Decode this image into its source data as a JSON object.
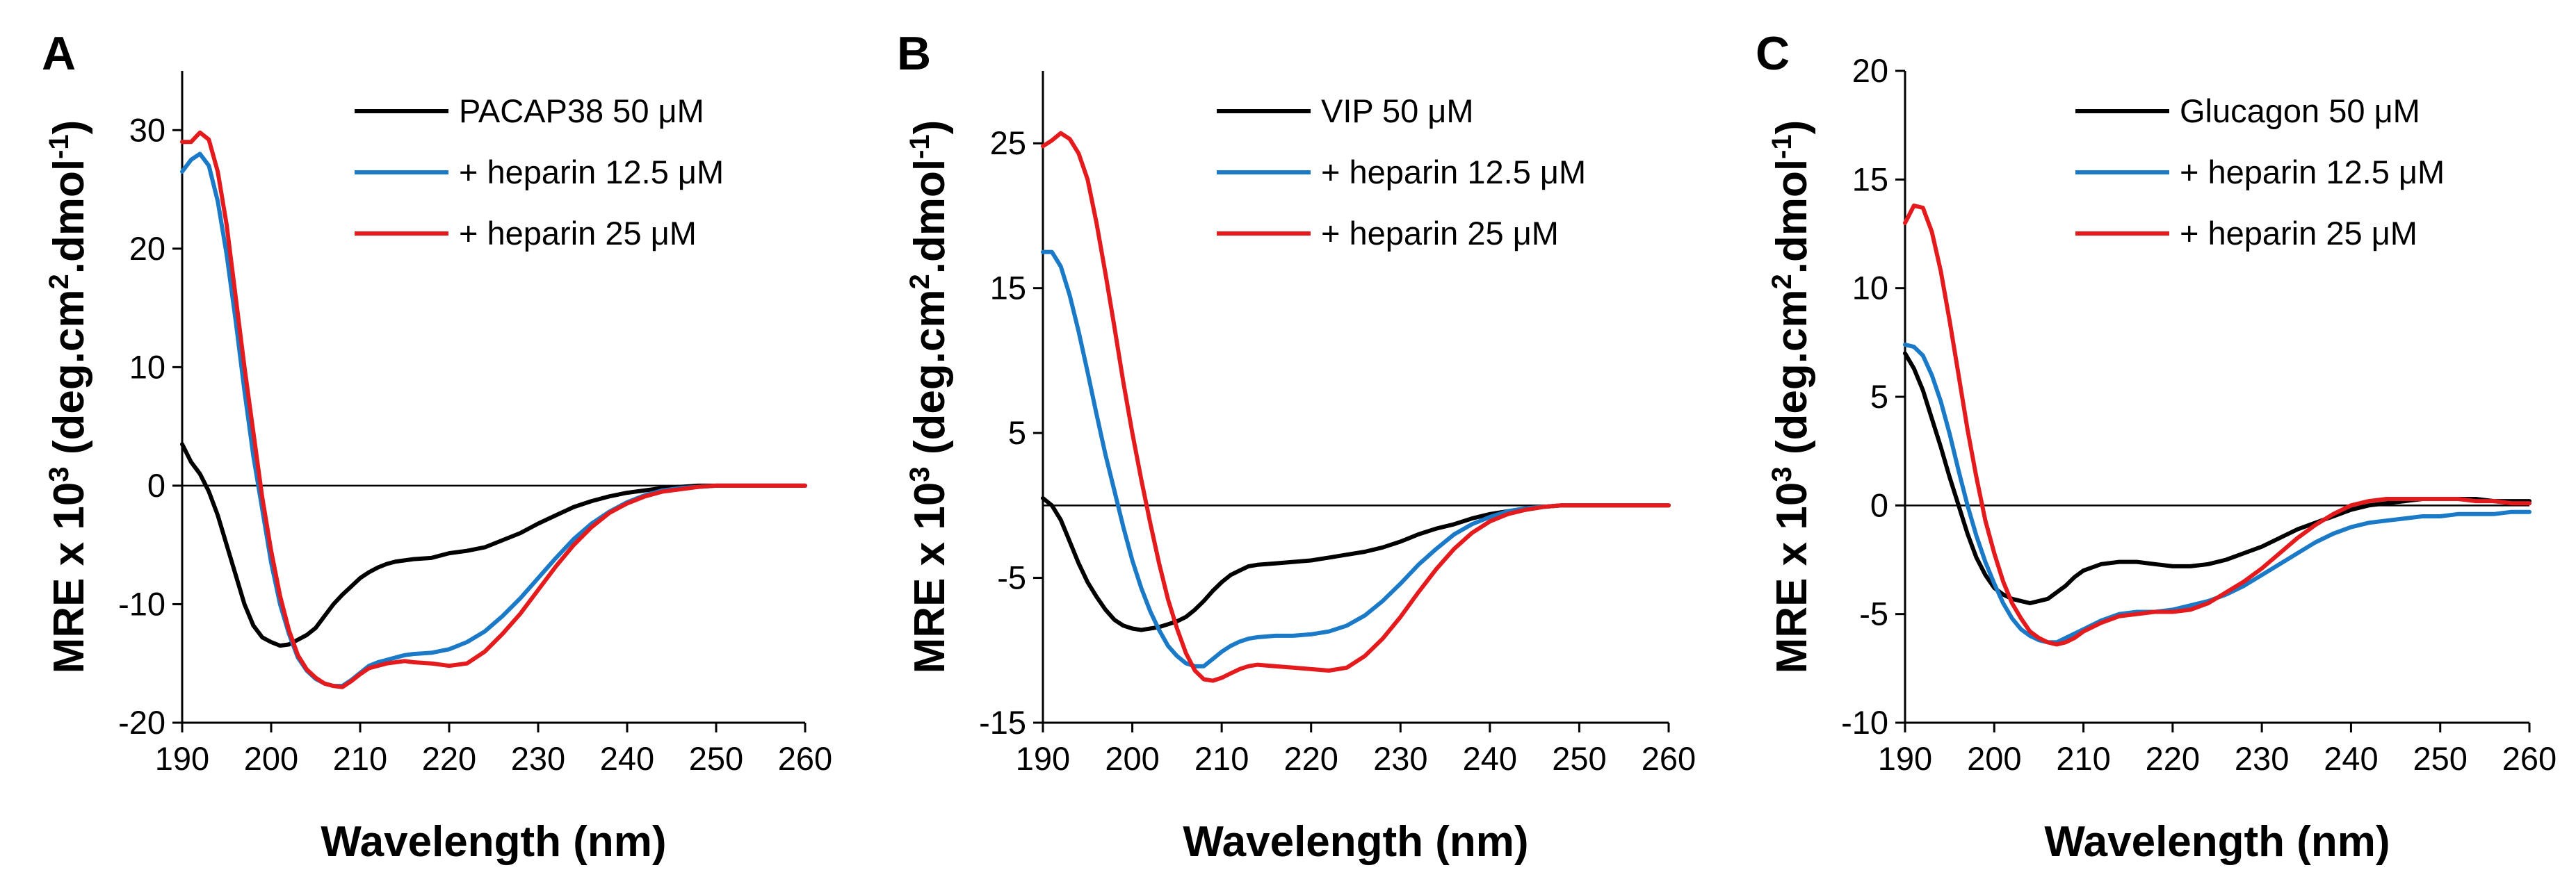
{
  "chart_data": [
    {
      "panel": "A",
      "type": "line",
      "title": "",
      "xlabel": "Wavelength (nm)",
      "ylabel_parts": [
        "MRE x 10",
        "3",
        " (deg.cm",
        "2",
        ".dmol",
        "-1",
        ")"
      ],
      "xlim": [
        190,
        260
      ],
      "ylim": [
        -20,
        35
      ],
      "xticks": [
        190,
        200,
        210,
        220,
        230,
        240,
        250,
        260
      ],
      "yticks": [
        -20,
        -10,
        0,
        10,
        20,
        30
      ],
      "x_tick_labels": [
        "190",
        "200",
        "210",
        "220",
        "230",
        "240",
        "250",
        "260"
      ],
      "y_tick_labels": [
        "-20",
        "-10",
        "0",
        "10",
        "20",
        "30"
      ],
      "zero_line": true,
      "legend_position": "top-right",
      "series": [
        {
          "name": "PACAP38 50 μM",
          "color": "#000000",
          "x": [
            190,
            191,
            192,
            193,
            194,
            195,
            196,
            197,
            198,
            199,
            200,
            201,
            202,
            203,
            204,
            205,
            206,
            207,
            208,
            209,
            210,
            211,
            212,
            213,
            214,
            215,
            216,
            218,
            220,
            222,
            224,
            226,
            228,
            230,
            232,
            234,
            236,
            238,
            240,
            242,
            244,
            246,
            248,
            250,
            252,
            254,
            256,
            258,
            260
          ],
          "values": [
            3.5,
            2.0,
            1.0,
            -0.5,
            -2.5,
            -5.0,
            -7.5,
            -10.0,
            -11.8,
            -12.8,
            -13.2,
            -13.5,
            -13.4,
            -13.0,
            -12.6,
            -12.0,
            -11.0,
            -10.0,
            -9.2,
            -8.5,
            -7.8,
            -7.3,
            -6.9,
            -6.6,
            -6.4,
            -6.3,
            -6.2,
            -6.1,
            -5.7,
            -5.5,
            -5.2,
            -4.6,
            -4.0,
            -3.2,
            -2.5,
            -1.8,
            -1.3,
            -0.9,
            -0.6,
            -0.4,
            -0.2,
            -0.1,
            0.0,
            0.0,
            0.0,
            0.0,
            0.0,
            0.0,
            0.0
          ]
        },
        {
          "name": "+ heparin 12.5 μM",
          "color": "#1a7ac7",
          "x": [
            190,
            191,
            192,
            193,
            194,
            195,
            196,
            197,
            198,
            199,
            200,
            201,
            202,
            203,
            204,
            205,
            206,
            207,
            208,
            209,
            210,
            211,
            212,
            213,
            214,
            215,
            216,
            218,
            220,
            222,
            224,
            226,
            228,
            230,
            232,
            234,
            236,
            238,
            240,
            242,
            244,
            246,
            248,
            250,
            252,
            254,
            256,
            258,
            260
          ],
          "values": [
            26.5,
            27.5,
            28.0,
            27.0,
            24.0,
            19.5,
            14.0,
            8.0,
            2.5,
            -2.0,
            -6.5,
            -10.0,
            -12.5,
            -14.5,
            -15.6,
            -16.3,
            -16.7,
            -16.9,
            -16.9,
            -16.4,
            -15.8,
            -15.2,
            -14.9,
            -14.7,
            -14.5,
            -14.3,
            -14.2,
            -14.1,
            -13.8,
            -13.2,
            -12.3,
            -11.0,
            -9.5,
            -7.8,
            -6.1,
            -4.5,
            -3.2,
            -2.2,
            -1.4,
            -0.8,
            -0.4,
            -0.2,
            -0.1,
            0.0,
            0.0,
            0.0,
            0.0,
            0.0,
            0.0
          ]
        },
        {
          "name": "+ heparin 25 μM",
          "color": "#e41a1c",
          "x": [
            190,
            191,
            192,
            193,
            194,
            195,
            196,
            197,
            198,
            199,
            200,
            201,
            202,
            203,
            204,
            205,
            206,
            207,
            208,
            209,
            210,
            211,
            212,
            213,
            214,
            215,
            216,
            218,
            220,
            222,
            224,
            226,
            228,
            230,
            232,
            234,
            236,
            238,
            240,
            242,
            244,
            246,
            248,
            250,
            252,
            254,
            256,
            258,
            260
          ],
          "values": [
            29.0,
            29.0,
            29.8,
            29.2,
            26.5,
            22.0,
            16.0,
            10.0,
            4.5,
            -1.0,
            -5.5,
            -9.3,
            -12.2,
            -14.3,
            -15.5,
            -16.2,
            -16.7,
            -16.9,
            -17.0,
            -16.5,
            -15.9,
            -15.4,
            -15.2,
            -15.0,
            -14.9,
            -14.8,
            -14.9,
            -15.0,
            -15.2,
            -15.0,
            -14.0,
            -12.5,
            -10.8,
            -8.8,
            -6.8,
            -5.0,
            -3.5,
            -2.3,
            -1.5,
            -0.9,
            -0.5,
            -0.3,
            -0.1,
            0.0,
            0.0,
            0.0,
            0.0,
            0.0,
            0.0
          ]
        }
      ]
    },
    {
      "panel": "B",
      "type": "line",
      "title": "",
      "xlabel": "Wavelength (nm)",
      "ylabel_parts": [
        "MRE x 10",
        "3",
        " (deg.cm",
        "2",
        ".dmol",
        "-1",
        ")"
      ],
      "xlim": [
        190,
        260
      ],
      "ylim": [
        -15,
        30
      ],
      "xticks": [
        190,
        200,
        210,
        220,
        230,
        240,
        250,
        260
      ],
      "yticks": [
        -15,
        -5,
        5,
        15,
        25
      ],
      "x_tick_labels": [
        "190",
        "200",
        "210",
        "220",
        "230",
        "240",
        "250",
        "260"
      ],
      "y_tick_labels": [
        "-15",
        "-5",
        "5",
        "15",
        "25"
      ],
      "zero_line": true,
      "legend_position": "top-right",
      "series": [
        {
          "name": "VIP 50 μM",
          "color": "#000000",
          "x": [
            190,
            191,
            192,
            193,
            194,
            195,
            196,
            197,
            198,
            199,
            200,
            201,
            202,
            203,
            204,
            205,
            206,
            207,
            208,
            209,
            210,
            211,
            212,
            213,
            214,
            216,
            218,
            220,
            222,
            224,
            226,
            228,
            230,
            232,
            234,
            236,
            238,
            240,
            242,
            244,
            246,
            248,
            250,
            252,
            254,
            256,
            258,
            260
          ],
          "values": [
            0.5,
            0.0,
            -1.0,
            -2.5,
            -4.0,
            -5.3,
            -6.3,
            -7.2,
            -7.9,
            -8.3,
            -8.5,
            -8.6,
            -8.5,
            -8.4,
            -8.2,
            -8.0,
            -7.7,
            -7.2,
            -6.6,
            -5.9,
            -5.3,
            -4.8,
            -4.5,
            -4.2,
            -4.1,
            -4.0,
            -3.9,
            -3.8,
            -3.6,
            -3.4,
            -3.2,
            -2.9,
            -2.5,
            -2.0,
            -1.6,
            -1.3,
            -0.9,
            -0.6,
            -0.4,
            -0.3,
            -0.1,
            0.0,
            0.0,
            0.0,
            0.0,
            0.0,
            0.0,
            0.0
          ]
        },
        {
          "name": "+ heparin 12.5 μM",
          "color": "#1a7ac7",
          "x": [
            190,
            191,
            192,
            193,
            194,
            195,
            196,
            197,
            198,
            199,
            200,
            201,
            202,
            203,
            204,
            205,
            206,
            207,
            208,
            209,
            210,
            211,
            212,
            213,
            214,
            216,
            218,
            220,
            222,
            224,
            226,
            228,
            230,
            232,
            234,
            236,
            238,
            240,
            242,
            244,
            246,
            248,
            250,
            252,
            254,
            256,
            258,
            260
          ],
          "values": [
            17.5,
            17.5,
            16.5,
            14.5,
            12.0,
            9.2,
            6.3,
            3.5,
            1.0,
            -1.5,
            -3.8,
            -5.7,
            -7.3,
            -8.6,
            -9.7,
            -10.4,
            -10.9,
            -11.1,
            -11.1,
            -10.6,
            -10.1,
            -9.7,
            -9.4,
            -9.2,
            -9.1,
            -9.0,
            -9.0,
            -8.9,
            -8.7,
            -8.3,
            -7.6,
            -6.6,
            -5.4,
            -4.1,
            -3.0,
            -2.0,
            -1.3,
            -0.8,
            -0.4,
            -0.2,
            -0.1,
            0.0,
            0.0,
            0.0,
            0.0,
            0.0,
            0.0,
            0.0
          ]
        },
        {
          "name": "+ heparin 25 μM",
          "color": "#e41a1c",
          "x": [
            190,
            191,
            192,
            193,
            194,
            195,
            196,
            197,
            198,
            199,
            200,
            201,
            202,
            203,
            204,
            205,
            206,
            207,
            208,
            209,
            210,
            211,
            212,
            213,
            214,
            216,
            218,
            220,
            222,
            224,
            226,
            228,
            230,
            232,
            234,
            236,
            238,
            240,
            242,
            244,
            246,
            248,
            250,
            252,
            254,
            256,
            258,
            260
          ],
          "values": [
            24.8,
            25.2,
            25.7,
            25.3,
            24.3,
            22.5,
            19.5,
            16.0,
            12.3,
            8.5,
            5.0,
            1.8,
            -1.2,
            -4.0,
            -6.5,
            -8.5,
            -10.2,
            -11.4,
            -12.0,
            -12.1,
            -11.9,
            -11.6,
            -11.3,
            -11.1,
            -11.0,
            -11.1,
            -11.2,
            -11.3,
            -11.4,
            -11.2,
            -10.4,
            -9.2,
            -7.7,
            -6.0,
            -4.4,
            -3.0,
            -1.9,
            -1.1,
            -0.6,
            -0.3,
            -0.1,
            0.0,
            0.0,
            0.0,
            0.0,
            0.0,
            0.0,
            0.0
          ]
        }
      ]
    },
    {
      "panel": "C",
      "type": "line",
      "title": "",
      "xlabel": "Wavelength (nm)",
      "ylabel_parts": [
        "MRE x 10",
        "3",
        " (deg.cm",
        "2",
        ".dmol",
        "-1",
        ")"
      ],
      "xlim": [
        190,
        260
      ],
      "ylim": [
        -10,
        20
      ],
      "xticks": [
        190,
        200,
        210,
        220,
        230,
        240,
        250,
        260
      ],
      "yticks": [
        -10,
        -5,
        0,
        5,
        10,
        15,
        20
      ],
      "x_tick_labels": [
        "190",
        "200",
        "210",
        "220",
        "230",
        "240",
        "250",
        "260"
      ],
      "y_tick_labels": [
        "-10",
        "-5",
        "0",
        "5",
        "10",
        "15",
        "20"
      ],
      "zero_line": true,
      "legend_position": "top-right",
      "series": [
        {
          "name": "Glucagon 50 μM",
          "color": "#000000",
          "x": [
            190,
            191,
            192,
            193,
            194,
            195,
            196,
            197,
            198,
            199,
            200,
            201,
            202,
            203,
            204,
            205,
            206,
            207,
            208,
            209,
            210,
            212,
            214,
            216,
            218,
            220,
            222,
            224,
            226,
            228,
            230,
            232,
            234,
            236,
            238,
            240,
            242,
            244,
            246,
            248,
            250,
            252,
            254,
            256,
            258,
            260
          ],
          "values": [
            7.0,
            6.3,
            5.3,
            4.0,
            2.7,
            1.3,
            0.0,
            -1.3,
            -2.4,
            -3.2,
            -3.8,
            -4.1,
            -4.3,
            -4.4,
            -4.5,
            -4.4,
            -4.3,
            -4.0,
            -3.7,
            -3.3,
            -3.0,
            -2.7,
            -2.6,
            -2.6,
            -2.7,
            -2.8,
            -2.8,
            -2.7,
            -2.5,
            -2.2,
            -1.9,
            -1.5,
            -1.1,
            -0.8,
            -0.5,
            -0.2,
            0.0,
            0.1,
            0.2,
            0.3,
            0.3,
            0.3,
            0.3,
            0.2,
            0.2,
            0.2
          ]
        },
        {
          "name": "+ heparin 12.5 μM",
          "color": "#1a7ac7",
          "x": [
            190,
            191,
            192,
            193,
            194,
            195,
            196,
            197,
            198,
            199,
            200,
            201,
            202,
            203,
            204,
            205,
            206,
            207,
            208,
            209,
            210,
            212,
            214,
            216,
            218,
            220,
            222,
            224,
            226,
            228,
            230,
            232,
            234,
            236,
            238,
            240,
            242,
            244,
            246,
            248,
            250,
            252,
            254,
            256,
            258,
            260
          ],
          "values": [
            7.4,
            7.3,
            6.9,
            6.0,
            4.8,
            3.3,
            1.6,
            0.0,
            -1.4,
            -2.6,
            -3.6,
            -4.5,
            -5.2,
            -5.7,
            -6.0,
            -6.2,
            -6.3,
            -6.3,
            -6.1,
            -5.9,
            -5.7,
            -5.3,
            -5.0,
            -4.9,
            -4.9,
            -4.8,
            -4.6,
            -4.4,
            -4.1,
            -3.7,
            -3.2,
            -2.7,
            -2.2,
            -1.7,
            -1.3,
            -1.0,
            -0.8,
            -0.7,
            -0.6,
            -0.5,
            -0.5,
            -0.4,
            -0.4,
            -0.4,
            -0.3,
            -0.3
          ]
        },
        {
          "name": "+ heparin 25 μM",
          "color": "#e41a1c",
          "x": [
            190,
            191,
            192,
            193,
            194,
            195,
            196,
            197,
            198,
            199,
            200,
            201,
            202,
            203,
            204,
            205,
            206,
            207,
            208,
            209,
            210,
            212,
            214,
            216,
            218,
            220,
            222,
            224,
            226,
            228,
            230,
            232,
            234,
            236,
            238,
            240,
            242,
            244,
            246,
            248,
            250,
            252,
            254,
            256,
            258,
            260
          ],
          "values": [
            13.0,
            13.8,
            13.7,
            12.6,
            10.8,
            8.5,
            6.0,
            3.5,
            1.3,
            -0.7,
            -2.2,
            -3.5,
            -4.5,
            -5.2,
            -5.8,
            -6.1,
            -6.3,
            -6.4,
            -6.3,
            -6.1,
            -5.8,
            -5.4,
            -5.1,
            -5.0,
            -4.9,
            -4.9,
            -4.8,
            -4.5,
            -4.0,
            -3.5,
            -2.9,
            -2.2,
            -1.5,
            -0.9,
            -0.4,
            0.0,
            0.2,
            0.3,
            0.3,
            0.3,
            0.3,
            0.3,
            0.2,
            0.2,
            0.1,
            0.1
          ]
        }
      ]
    }
  ]
}
